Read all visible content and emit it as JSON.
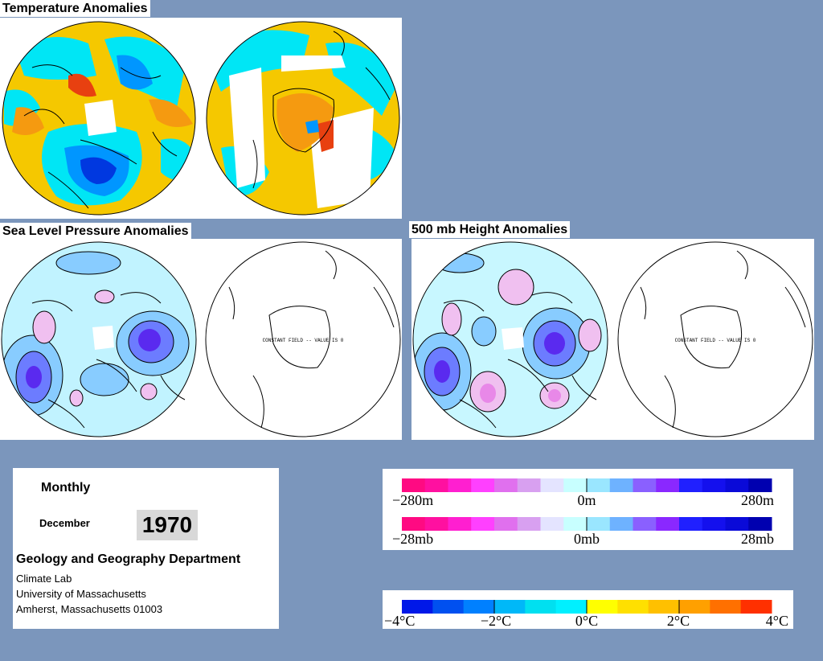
{
  "titles": {
    "temperature": "Temperature Anomalies",
    "slp": "Sea Level Pressure Anomalies",
    "height500": "500 mb Height Anomalies"
  },
  "south_map_note": "CONSTANT FIELD -- VALUE IS 0",
  "info": {
    "period": "Monthly",
    "month": "December",
    "year": "1970",
    "department": "Geology and Geography Department",
    "lab": "Climate Lab",
    "university": "University of Massachusetts",
    "address": "Amherst, Massachusetts 01003"
  },
  "height_scale": {
    "labels": [
      "−280m",
      "0m",
      "280m"
    ],
    "colors": [
      "#ff0a82",
      "#ff10a0",
      "#ff1fd0",
      "#ff40ff",
      "#e070ee",
      "#d8a0f0",
      "#e4e4ff",
      "#c8ffff",
      "#9ae6ff",
      "#6eb2ff",
      "#8a60ff",
      "#8a28ff",
      "#2020ff",
      "#1410ee",
      "#0a0ad8",
      "#0000b0"
    ]
  },
  "pressure_scale": {
    "labels": [
      "−28mb",
      "0mb",
      "28mb"
    ],
    "colors": [
      "#ff0a82",
      "#ff10a0",
      "#ff1fd0",
      "#ff40ff",
      "#e070ee",
      "#d8a0f0",
      "#e4e4ff",
      "#c8ffff",
      "#9ae6ff",
      "#6eb2ff",
      "#8a60ff",
      "#8a28ff",
      "#2020ff",
      "#1410ee",
      "#0a0ad8",
      "#0000b0"
    ]
  },
  "temperature_scale": {
    "labels": [
      "−4°C",
      "−2°C",
      "0°C",
      "2°C",
      "4°C"
    ],
    "colors": [
      "#0018e8",
      "#0050f0",
      "#0080ff",
      "#00b8f8",
      "#00e0f0",
      "#00f0ff",
      "#ffff00",
      "#ffe000",
      "#ffc000",
      "#ffa000",
      "#ff7000",
      "#ff3000"
    ]
  },
  "map_colors": {
    "warm": "#f5c800",
    "warm2": "#f59a10",
    "hot": "#e84010",
    "cool": "#00e6f5",
    "cold": "#0096ff",
    "colder": "#0038e0",
    "slp_bg": "#c8f7ff",
    "slp_lo1": "#88ccff",
    "slp_lo2": "#6c7cff",
    "slp_lo3": "#5a2aef",
    "slp_hi1": "#f0c0f0",
    "slp_hi2": "#e888e8"
  }
}
